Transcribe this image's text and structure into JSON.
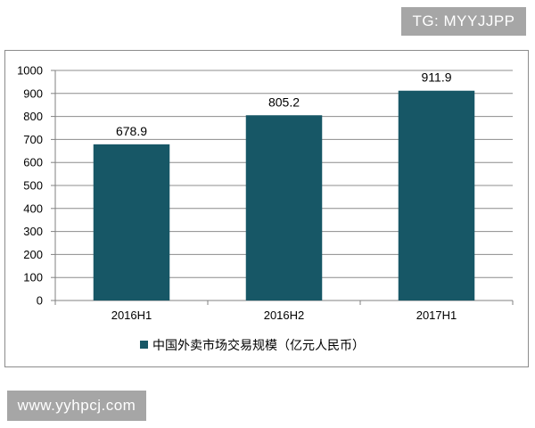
{
  "watermark_top": "TG: MYYJJPP",
  "watermark_bottom": "www.yyhpcj.com",
  "colors": {
    "bar": "#175766",
    "axis": "#808080",
    "grid": "#8c8c8c"
  },
  "chart_data": {
    "type": "bar",
    "categories": [
      "2016H1",
      "2016H2",
      "2017H1"
    ],
    "series": [
      {
        "name": "中国外卖市场交易规模（亿元人民币）",
        "values": [
          678.9,
          805.2,
          911.9
        ]
      }
    ],
    "data_labels": [
      "678.9",
      "805.2",
      "911.9"
    ],
    "ylim": [
      0,
      1000
    ],
    "yticks": [
      0,
      100,
      200,
      300,
      400,
      500,
      600,
      700,
      800,
      900,
      1000
    ],
    "grid": true,
    "legend_position": "bottom",
    "title": "",
    "xlabel": "",
    "ylabel": ""
  }
}
